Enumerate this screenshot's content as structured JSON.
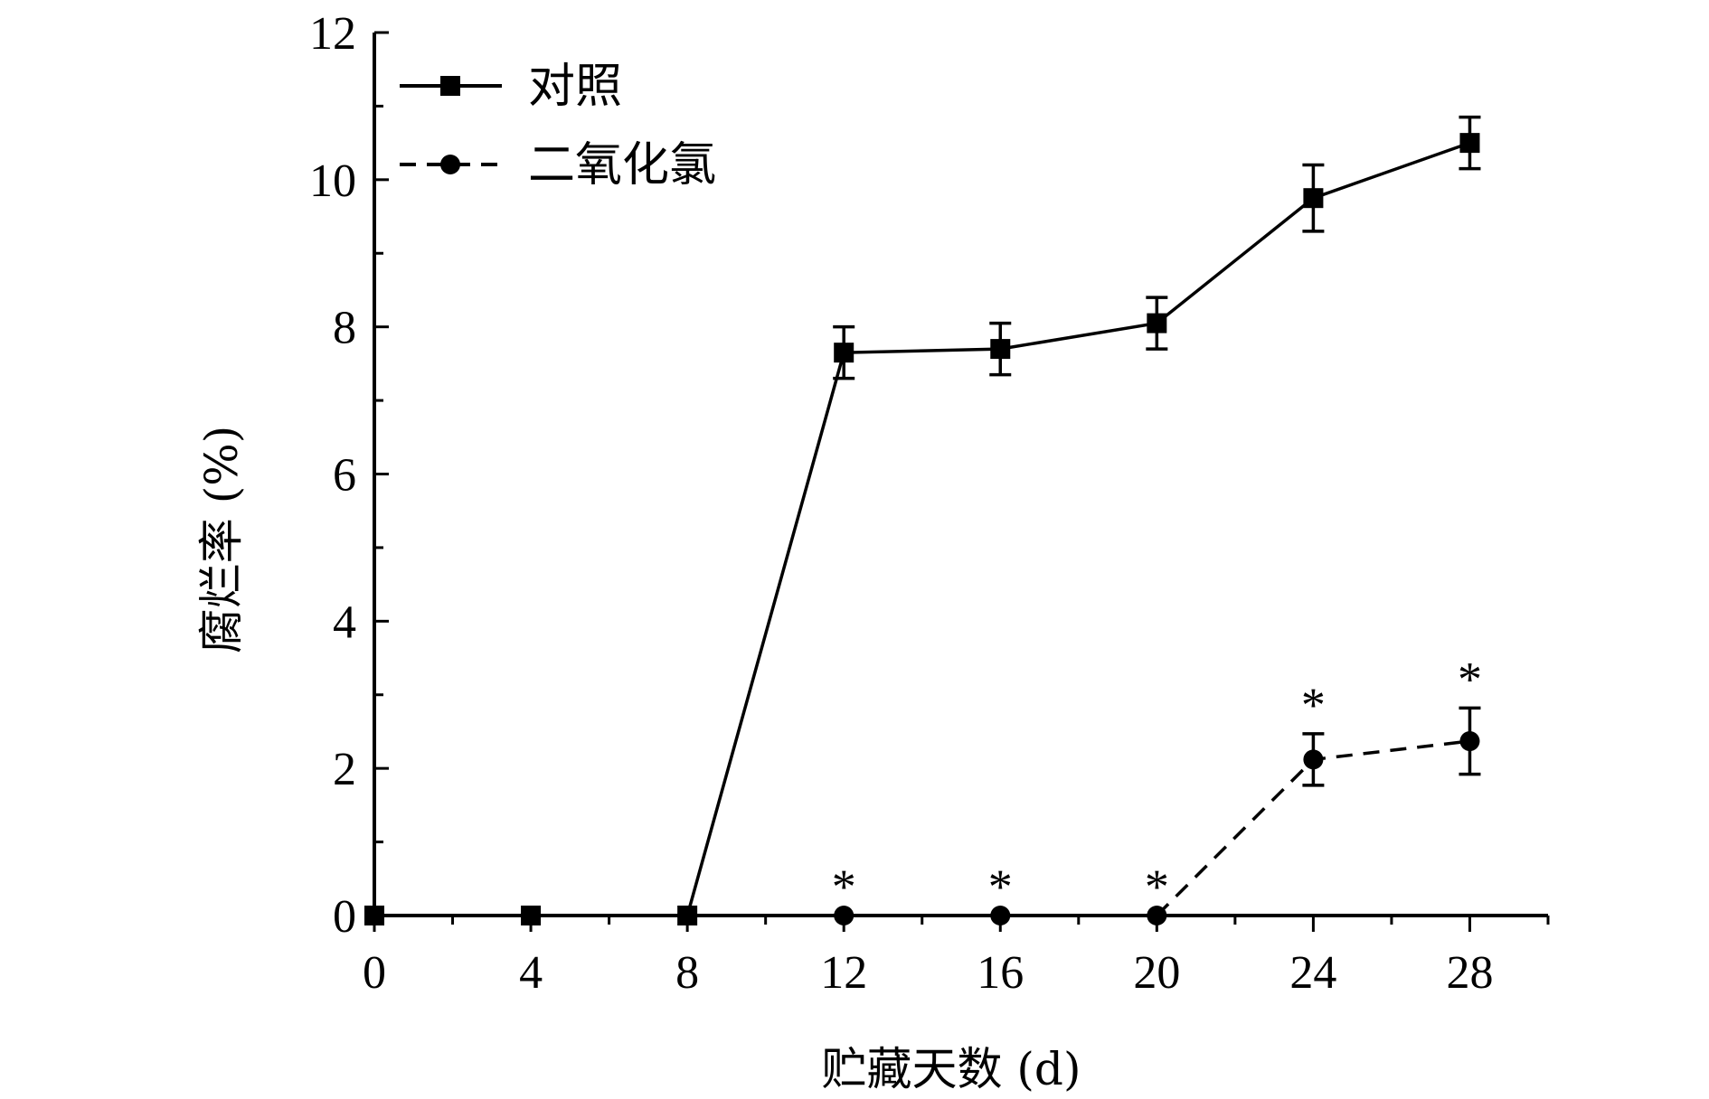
{
  "chart_data": {
    "type": "line",
    "title": "",
    "xlabel": "贮藏天数 (d)",
    "ylabel": "腐烂率 (%)",
    "xlim": [
      0,
      30
    ],
    "ylim": [
      0,
      12
    ],
    "x": [
      0,
      4,
      8,
      12,
      16,
      20,
      24,
      28
    ],
    "x_ticks": [
      "0",
      "4",
      "8",
      "12",
      "16",
      "20",
      "24",
      "28"
    ],
    "y_ticks": [
      "0",
      "2",
      "4",
      "6",
      "8",
      "10",
      "12"
    ],
    "series": [
      {
        "name": "对照",
        "line_style": "solid",
        "marker": "square",
        "values": [
          0,
          0,
          0,
          7.65,
          7.7,
          8.05,
          9.75,
          10.5
        ],
        "error": [
          0,
          0,
          0,
          0.35,
          0.35,
          0.35,
          0.45,
          0.35
        ]
      },
      {
        "name": "二氧化氯",
        "line_style": "dashed",
        "marker": "circle",
        "values": [
          0,
          0,
          0,
          0,
          0,
          0,
          2.12,
          2.37
        ],
        "error": [
          0,
          0,
          0,
          0,
          0,
          0,
          0.35,
          0.45
        ]
      }
    ],
    "annotations": [
      {
        "x": 12,
        "y": 0,
        "text": "*"
      },
      {
        "x": 16,
        "y": 0,
        "text": "*"
      },
      {
        "x": 20,
        "y": 0,
        "text": "*"
      },
      {
        "x": 24,
        "y": 2.47,
        "text": "*"
      },
      {
        "x": 28,
        "y": 2.82,
        "text": "*"
      }
    ],
    "legend_position": "top-left",
    "grid": false
  }
}
